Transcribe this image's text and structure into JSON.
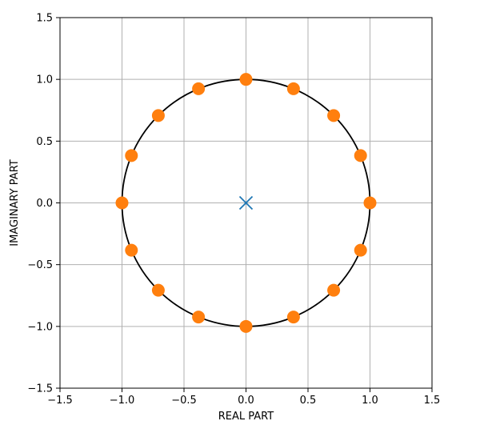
{
  "chart_data": {
    "type": "scatter",
    "xlabel": "REAL PART",
    "ylabel": "IMAGINARY PART",
    "xlim": [
      -1.5,
      1.5
    ],
    "ylim": [
      -1.5,
      1.5
    ],
    "xticks": [
      -1.5,
      -1.0,
      -0.5,
      0.0,
      0.5,
      1.0,
      1.5
    ],
    "yticks": [
      -1.5,
      -1.0,
      -0.5,
      0.0,
      0.5,
      1.0,
      1.5
    ],
    "xtick_labels": [
      "−1.5",
      "−1.0",
      "−0.5",
      "0.0",
      "0.5",
      "1.0",
      "1.5"
    ],
    "ytick_labels": [
      "−1.5",
      "−1.0",
      "−0.5",
      "0.0",
      "0.5",
      "1.0",
      "1.5"
    ],
    "grid": true,
    "unit_circle": {
      "center": [
        0,
        0
      ],
      "radius": 1,
      "color": "#000000"
    },
    "series": [
      {
        "marker": "circle",
        "color": "#ff7f0e",
        "points": [
          [
            1.0,
            0.0
          ],
          [
            0.924,
            0.383
          ],
          [
            0.707,
            0.707
          ],
          [
            0.383,
            0.924
          ],
          [
            0.0,
            1.0
          ],
          [
            -0.383,
            0.924
          ],
          [
            -0.707,
            0.707
          ],
          [
            -0.924,
            0.383
          ],
          [
            -1.0,
            0.0
          ],
          [
            -0.924,
            -0.383
          ],
          [
            -0.707,
            -0.707
          ],
          [
            -0.383,
            -0.924
          ],
          [
            0.0,
            -1.0
          ],
          [
            0.383,
            -0.924
          ],
          [
            0.707,
            -0.707
          ],
          [
            0.924,
            -0.383
          ]
        ]
      },
      {
        "marker": "x",
        "color": "#1f77b4",
        "points": [
          [
            0.0,
            0.0
          ]
        ]
      }
    ]
  }
}
